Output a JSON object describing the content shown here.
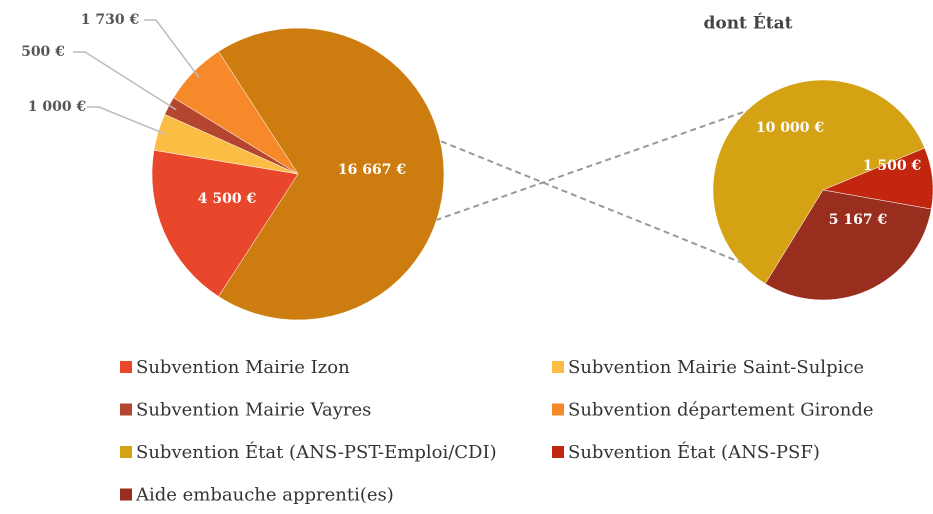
{
  "chart_data": [
    {
      "type": "pie",
      "categories": [
        "Subvention Mairie Izon",
        "Subvention Mairie Saint-Sulpice",
        "Subvention Mairie Vayres",
        "Subvention département Gironde",
        null
      ],
      "values": [
        4500,
        1000,
        500,
        1730,
        16667
      ],
      "value_labels": [
        "4 500 €",
        "1 000 €",
        "500 €",
        "1 730 €",
        "16 667 €"
      ],
      "colors": [
        "#e9472b",
        "#fbbd44",
        "#b4452f",
        "#f68a2b",
        "#cd7d0f"
      ]
    },
    {
      "type": "pie",
      "title": "dont État",
      "categories": [
        "Subvention État (ANS-PST-Emploi/CDI)",
        "Subvention État (ANS-PSF)",
        "Aide embauche apprenti(es)"
      ],
      "values": [
        10000,
        1500,
        5167
      ],
      "value_labels": [
        "10 000 €",
        "1 500 €",
        "5 167 €"
      ],
      "colors": [
        "#d4a213",
        "#c2260f",
        "#9a2e1e"
      ]
    }
  ]
}
